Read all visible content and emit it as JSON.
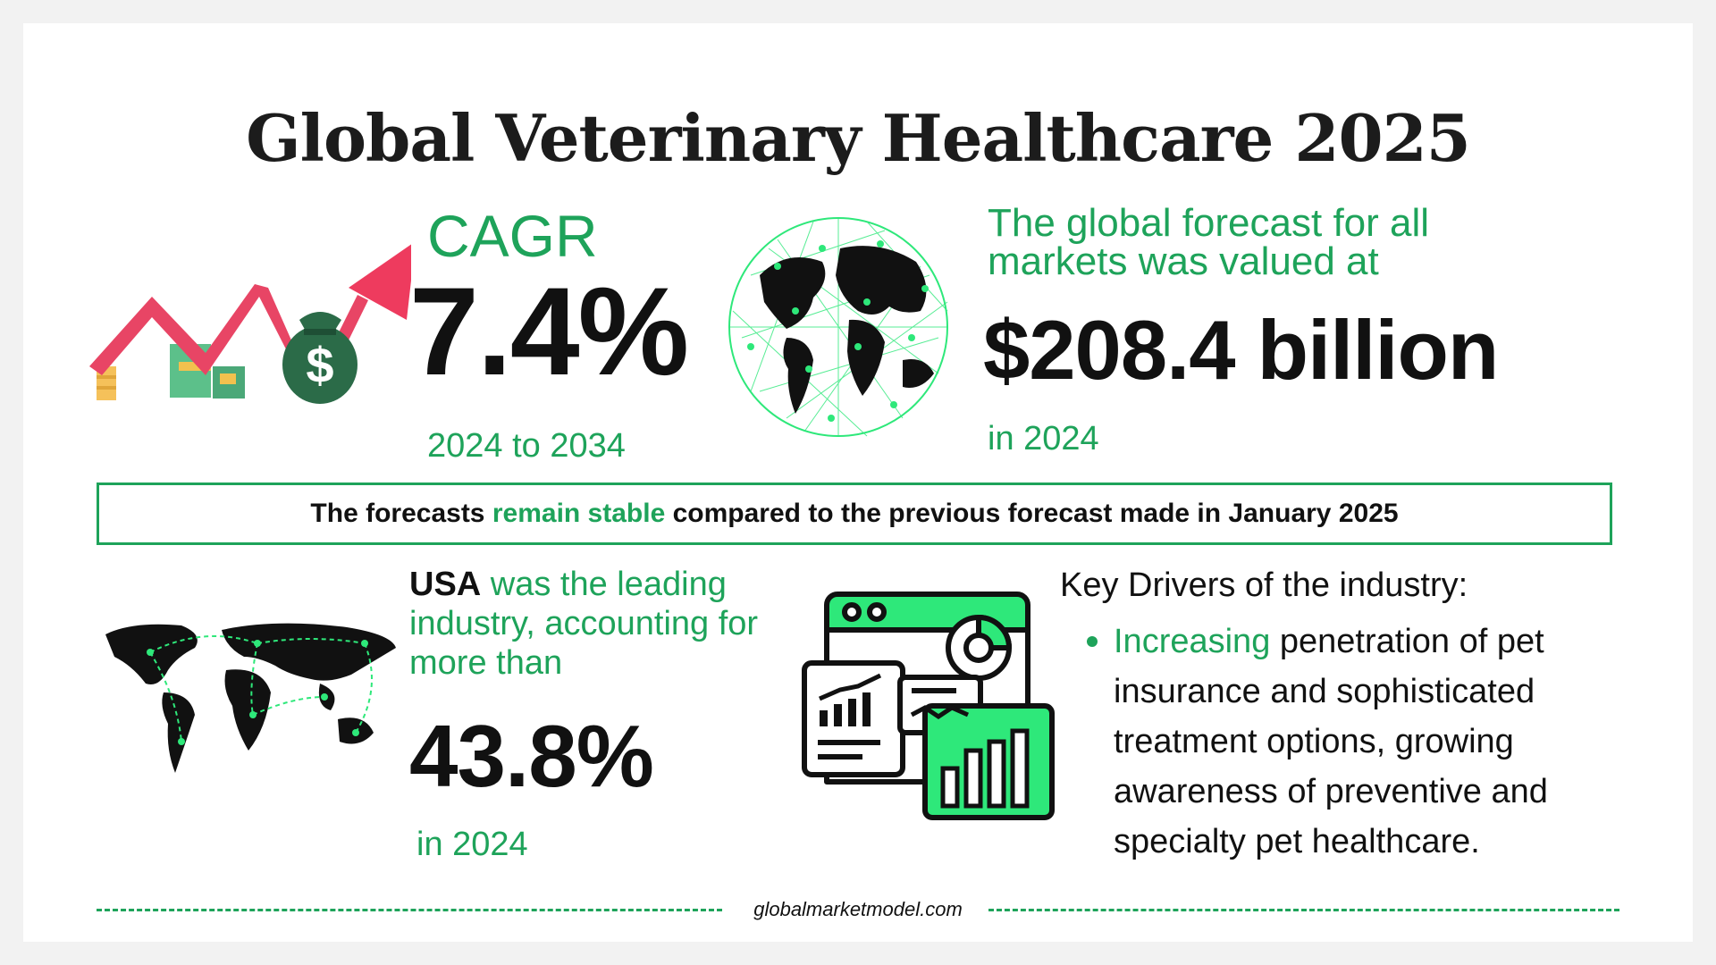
{
  "title": "Global Veterinary Healthcare 2025",
  "cagr": {
    "label": "CAGR",
    "value": "7.4%",
    "range": "2024 to 2034"
  },
  "forecast": {
    "label": "The global forecast for all markets was valued at",
    "value": "$208.4 billion",
    "year": "in 2024"
  },
  "banner": {
    "prefix": "The forecasts ",
    "highlight": "remain stable",
    "suffix": " compared to the previous forecast made in January 2025"
  },
  "usa": {
    "country": "USA",
    "text": " was the leading industry, accounting for more than",
    "value": "43.8%",
    "year": "in 2024"
  },
  "drivers": {
    "title": "Key Drivers of the industry:",
    "highlight": "Increasing",
    "text": " penetration of pet insurance and sophisticated treatment options, growing awareness of preventive and specialty pet healthcare."
  },
  "footer": "globalmarketmodel.com",
  "icons": [
    "growth-arrow-money-icon",
    "network-globe-icon",
    "world-map-routes-icon",
    "analytics-dashboard-icon"
  ],
  "colors": {
    "accent": "#1ea35a",
    "bright_green": "#2ee87a",
    "arrow_red": "#ee3b5e",
    "text": "#111111"
  }
}
